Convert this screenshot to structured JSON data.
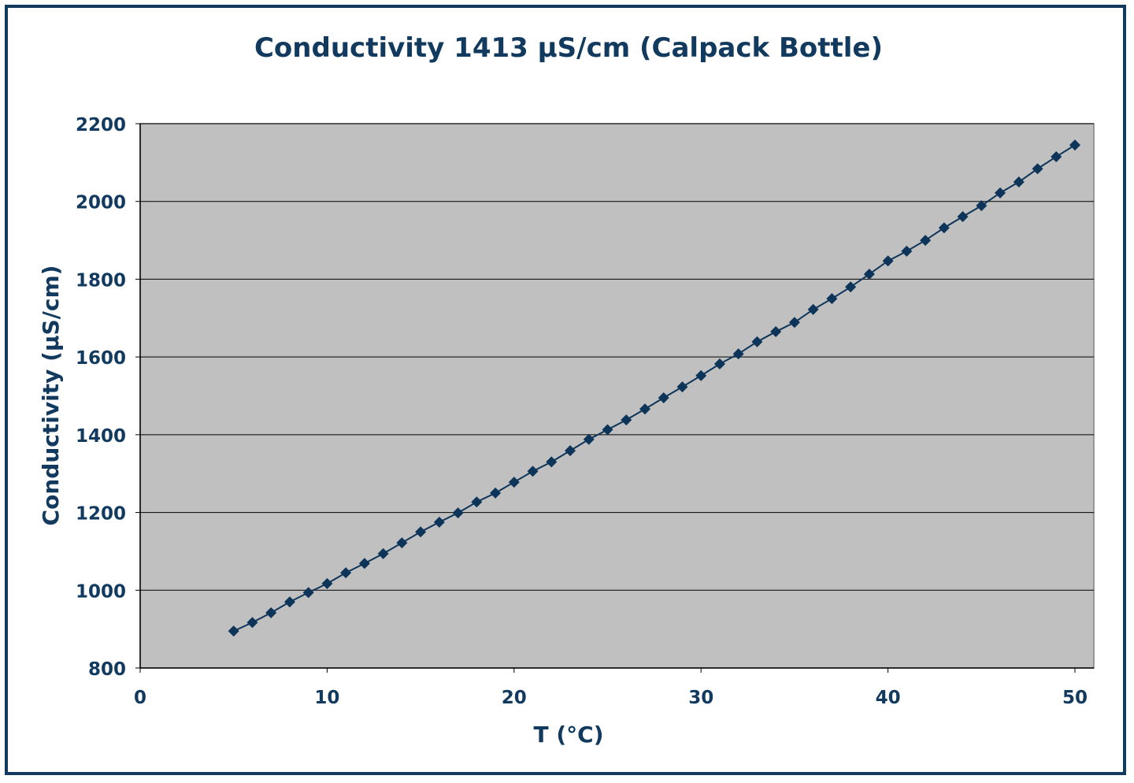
{
  "chart_data": {
    "type": "line",
    "title": "Conductivity 1413 µS/cm (Calpack Bottle)",
    "xlabel": "T (°C)",
    "ylabel": "Conductivity (µS/cm)",
    "xlim": [
      0,
      50
    ],
    "ylim": [
      800,
      2200
    ],
    "xticks": [
      0,
      10,
      20,
      30,
      40,
      50
    ],
    "yticks": [
      800,
      1000,
      1200,
      1400,
      1600,
      1800,
      2000,
      2200
    ],
    "grid": "horizontal",
    "legend": "none",
    "series": [
      {
        "name": "Conductivity",
        "color": "#0d3459",
        "x": [
          5,
          6,
          7,
          8,
          9,
          10,
          11,
          12,
          13,
          14,
          15,
          16,
          17,
          18,
          19,
          20,
          21,
          22,
          23,
          24,
          25,
          26,
          27,
          28,
          29,
          30,
          31,
          32,
          33,
          34,
          35,
          36,
          37,
          38,
          39,
          40,
          41,
          42,
          43,
          44,
          45,
          46,
          47,
          48,
          49,
          50
        ],
        "y": [
          895,
          917,
          942,
          970,
          994,
          1017,
          1045,
          1069,
          1094,
          1122,
          1150,
          1175,
          1199,
          1227,
          1250,
          1278,
          1306,
          1330,
          1359,
          1388,
          1413,
          1438,
          1466,
          1495,
          1523,
          1552,
          1582,
          1608,
          1639,
          1665,
          1689,
          1722,
          1750,
          1780,
          1813,
          1847,
          1872,
          1900,
          1932,
          1961,
          1989,
          2022,
          2050,
          2084,
          2115,
          2145
        ]
      }
    ],
    "colors": {
      "plot_bg": "#c0c0c0",
      "text": "#123a5e",
      "frame": "#123a5e"
    }
  }
}
